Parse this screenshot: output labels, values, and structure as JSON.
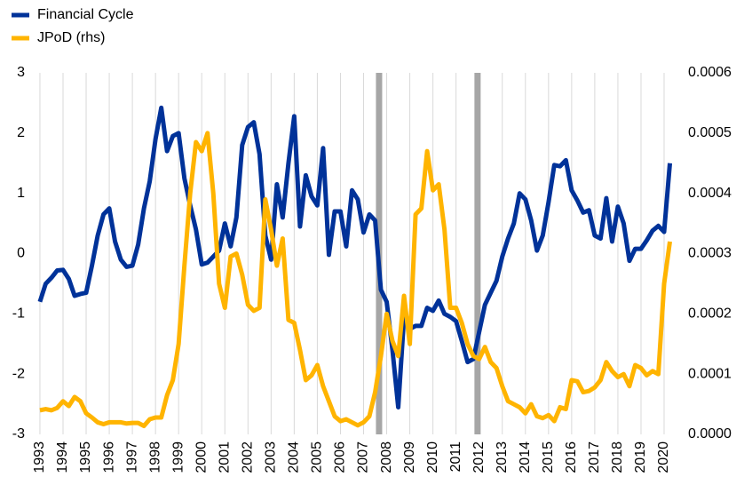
{
  "chart_data": {
    "type": "line",
    "legend": "top-left",
    "grid": true,
    "x": [
      1993,
      1993.25,
      1993.5,
      1993.75,
      1994,
      1994.25,
      1994.5,
      1994.75,
      1995,
      1995.25,
      1995.5,
      1995.75,
      1996,
      1996.25,
      1996.5,
      1996.75,
      1997,
      1997.25,
      1997.5,
      1997.75,
      1998,
      1998.25,
      1998.5,
      1998.75,
      1999,
      1999.25,
      1999.5,
      1999.75,
      2000,
      2000.25,
      2000.5,
      2000.75,
      2001,
      2001.25,
      2001.5,
      2001.75,
      2002,
      2002.25,
      2002.5,
      2002.75,
      2003,
      2003.25,
      2003.5,
      2003.75,
      2004,
      2004.25,
      2004.5,
      2004.75,
      2005,
      2005.25,
      2005.5,
      2005.75,
      2006,
      2006.25,
      2006.5,
      2006.75,
      2007,
      2007.25,
      2007.5,
      2007.75,
      2008,
      2008.25,
      2008.5,
      2008.75,
      2009,
      2009.25,
      2009.5,
      2009.75,
      2010,
      2010.25,
      2010.5,
      2010.75,
      2011,
      2011.25,
      2011.5,
      2011.75,
      2012,
      2012.25,
      2012.5,
      2012.75,
      2013,
      2013.25,
      2013.5,
      2013.75,
      2014,
      2014.25,
      2014.5,
      2014.75,
      2015,
      2015.25,
      2015.5,
      2015.75,
      2016,
      2016.25,
      2016.5,
      2016.75,
      2017,
      2017.25,
      2017.5,
      2017.75,
      2018,
      2018.25,
      2018.5,
      2018.75,
      2019,
      2019.25,
      2019.5,
      2019.75,
      2020,
      2020.25
    ],
    "series": [
      {
        "name": "Financial Cycle",
        "color": "#003299",
        "values": [
          -0.8,
          -0.5,
          -0.4,
          -0.28,
          -0.27,
          -0.42,
          -0.7,
          -0.67,
          -0.65,
          -0.2,
          0.3,
          0.65,
          0.75,
          0.2,
          -0.1,
          -0.22,
          -0.2,
          0.15,
          0.75,
          1.2,
          1.9,
          2.42,
          1.7,
          1.95,
          2.0,
          1.25,
          0.8,
          0.4,
          -0.18,
          -0.15,
          -0.05,
          0.05,
          0.5,
          0.12,
          0.6,
          1.8,
          2.1,
          2.18,
          1.65,
          0.3,
          -0.1,
          1.15,
          0.6,
          1.5,
          2.28,
          0.45,
          1.3,
          0.95,
          0.8,
          1.75,
          -0.02,
          0.7,
          0.7,
          0.12,
          1.05,
          0.9,
          0.35,
          0.65,
          0.55,
          -0.6,
          -0.8,
          -1.6,
          -2.55,
          -1.05,
          -1.25,
          -1.2,
          -1.2,
          -0.9,
          -0.95,
          -0.78,
          -1.0,
          -1.05,
          -1.12,
          -1.45,
          -1.8,
          -1.75,
          -1.3,
          -0.85,
          -0.65,
          -0.45,
          -0.05,
          0.25,
          0.5,
          1.0,
          0.9,
          0.55,
          0.05,
          0.3,
          0.85,
          1.47,
          1.45,
          1.55,
          1.05,
          0.88,
          0.68,
          0.72,
          0.3,
          0.25,
          0.92,
          0.2,
          0.78,
          0.5,
          -0.12,
          0.08,
          0.08,
          0.22,
          0.38,
          0.46,
          0.36,
          1.5
        ]
      },
      {
        "name": "JPoD (rhs)",
        "color": "#ffb400",
        "axis": "y2",
        "values": [
          4e-05,
          4.2e-05,
          4e-05,
          4.4e-05,
          5.5e-05,
          4.7e-05,
          6.2e-05,
          5.5e-05,
          3.5e-05,
          2.8e-05,
          2e-05,
          1.7e-05,
          2e-05,
          2e-05,
          2e-05,
          1.8e-05,
          1.9e-05,
          1.9e-05,
          1.4e-05,
          2.5e-05,
          2.8e-05,
          2.8e-05,
          6.5e-05,
          9e-05,
          0.00015,
          0.00028,
          0.0004,
          0.000485,
          0.00047,
          0.0005,
          0.0004,
          0.00025,
          0.00021,
          0.000295,
          0.0003,
          0.000265,
          0.000215,
          0.000205,
          0.00021,
          0.00039,
          0.00034,
          0.00028,
          0.000325,
          0.00019,
          0.000185,
          0.00014,
          9e-05,
          9.8e-05,
          0.000115,
          8e-05,
          5.5e-05,
          3e-05,
          2.2e-05,
          2.5e-05,
          2e-05,
          1.5e-05,
          2e-05,
          3e-05,
          7e-05,
          0.00013,
          0.0002,
          0.000155,
          0.00013,
          0.00023,
          0.00015,
          0.000365,
          0.000375,
          0.00047,
          0.000405,
          0.000415,
          0.00034,
          0.00021,
          0.00021,
          0.000185,
          0.00015,
          0.00013,
          0.000125,
          0.000145,
          0.00012,
          0.00011,
          8e-05,
          5.5e-05,
          5e-05,
          4.5e-05,
          3.5e-05,
          5e-05,
          3e-05,
          2.7e-05,
          3.2e-05,
          2.2e-05,
          4.5e-05,
          4.2e-05,
          9e-05,
          8.8e-05,
          7e-05,
          7.2e-05,
          7.8e-05,
          9e-05,
          0.00012,
          0.000105,
          9.5e-05,
          0.0001,
          8e-05,
          0.000115,
          0.00011,
          9.8e-05,
          0.000105,
          0.0001,
          0.00025,
          0.00032
        ]
      }
    ],
    "vlines": [
      2007.67,
      2011.93
    ],
    "xlim": [
      1992.81,
      2020.46
    ],
    "xticks": [
      1993,
      1994,
      1995,
      1996,
      1997,
      1998,
      1999,
      2000,
      2001,
      2002,
      2003,
      2004,
      2005,
      2006,
      2007,
      2008,
      2009,
      2010,
      2011,
      2012,
      2013,
      2014,
      2015,
      2016,
      2017,
      2018,
      2019,
      2020
    ],
    "ylim": [
      -3,
      3
    ],
    "yticks": [
      -3,
      -2,
      -1,
      0,
      1,
      2,
      3
    ],
    "y2lim": [
      0,
      0.0006
    ],
    "y2ticks": [
      {
        "value": 0,
        "label": "0.0000"
      },
      0.0001,
      0.0002,
      0.0003,
      0.0004,
      0.0005,
      0.0006
    ]
  }
}
